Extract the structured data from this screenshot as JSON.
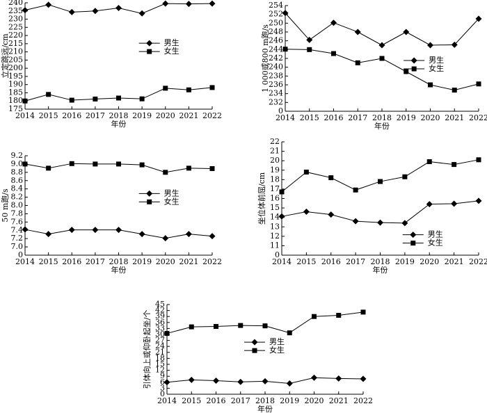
{
  "chart_data": [
    {
      "type": "line",
      "ylabel": "立定跳远/cm",
      "xlabel": "年份",
      "categories": [
        "2014",
        "2015",
        "2016",
        "2017",
        "2018",
        "2019",
        "2020",
        "2021",
        "2022"
      ],
      "ylim": [
        175,
        240
      ],
      "yticks": [
        175,
        180,
        185,
        190,
        195,
        200,
        205,
        210,
        215,
        220,
        225,
        230,
        235,
        240
      ],
      "legend_loc": "center right",
      "series": [
        {
          "name": "男生",
          "color": "#000000",
          "marker": "diamond",
          "values": [
            235.5,
            238.8,
            234.3,
            235,
            236.8,
            233.5,
            239.5,
            239.3,
            239.5
          ]
        },
        {
          "name": "女生",
          "color": "#000000",
          "marker": "square",
          "values": [
            180,
            184,
            180.5,
            181.2,
            181.8,
            181.3,
            187.8,
            186.8,
            188.2
          ]
        }
      ]
    },
    {
      "type": "line",
      "ylabel": "1 000或800 m跑/s",
      "xlabel": "年份",
      "categories": [
        "2014",
        "2015",
        "2016",
        "2017",
        "2018",
        "2019",
        "2020",
        "2021",
        "2022"
      ],
      "ylim": [
        230,
        254
      ],
      "yticks": [
        232,
        234,
        236,
        238,
        240,
        242,
        244,
        246,
        248,
        250,
        252,
        254
      ],
      "axis_break_label": "0",
      "legend_loc": "upper right",
      "series": [
        {
          "name": "男生",
          "color": "#000000",
          "marker": "diamond",
          "values": [
            252.3,
            246.2,
            250.1,
            248,
            245,
            248,
            245,
            245.1,
            251
          ]
        },
        {
          "name": "女生",
          "color": "#000000",
          "marker": "square",
          "values": [
            244.1,
            244,
            243.1,
            241,
            242,
            239,
            236,
            234.8,
            236.2
          ]
        }
      ]
    },
    {
      "type": "line",
      "ylabel": "50 m跑/s",
      "xlabel": "年份",
      "categories": [
        "2014",
        "2015",
        "2016",
        "2017",
        "2018",
        "2019",
        "2020",
        "2021",
        "2022"
      ],
      "ylim": [
        6.8,
        9.2
      ],
      "yticks": [
        {
          "value": 7,
          "label": "7.0"
        },
        7.2,
        7.4,
        7.6,
        7.8,
        {
          "value": 8,
          "label": "8.0"
        },
        8.2,
        8.4,
        8.6,
        8.8,
        {
          "value": 9,
          "label": "9.0"
        },
        9.2
      ],
      "axis_break_label": "0",
      "legend_loc": "center right",
      "series": [
        {
          "name": "男生",
          "color": "#000000",
          "marker": "diamond",
          "values": [
            7.42,
            7.31,
            7.41,
            7.41,
            7.41,
            7.31,
            7.21,
            7.31,
            7.26
          ]
        },
        {
          "name": "女生",
          "color": "#000000",
          "marker": "square",
          "values": [
            9.0,
            8.9,
            9.01,
            9.0,
            9.0,
            8.98,
            8.8,
            8.9,
            8.89
          ]
        }
      ]
    },
    {
      "type": "line",
      "ylabel": "坐位体前屈/cm",
      "xlabel": "年份",
      "categories": [
        "2014",
        "2015",
        "2016",
        "2017",
        "2018",
        "2019",
        "2020",
        "2021",
        "2022"
      ],
      "ylim": [
        10,
        22
      ],
      "yticks": [
        11,
        12,
        13,
        14,
        15,
        16,
        17,
        18,
        19,
        20,
        21,
        22
      ],
      "axis_break_label": "0",
      "legend_loc": "lower right",
      "series": [
        {
          "name": "男生",
          "color": "#000000",
          "marker": "diamond",
          "values": [
            14.1,
            14.6,
            14.3,
            13.6,
            13.45,
            13.4,
            15.4,
            15.45,
            15.75
          ]
        },
        {
          "name": "女生",
          "color": "#000000",
          "marker": "square",
          "values": [
            16.7,
            18.8,
            18.2,
            16.9,
            17.8,
            18.3,
            19.9,
            19.6,
            20.1
          ]
        }
      ]
    },
    {
      "type": "line",
      "ylabel": "引体向上或仰卧起坐/个",
      "xlabel": "年份",
      "categories": [
        "2014",
        "2015",
        "2016",
        "2017",
        "2018",
        "2019",
        "2020",
        "2021",
        "2022"
      ],
      "ylim": [
        0,
        45
      ],
      "yticks": [
        0,
        3,
        6,
        9,
        12,
        15,
        18,
        21,
        24,
        27,
        30,
        33,
        36,
        39,
        42,
        45
      ],
      "legend_loc": "center",
      "series": [
        {
          "name": "男生",
          "color": "#000000",
          "marker": "diamond",
          "values": [
            6,
            7.2,
            6.8,
            6.2,
            6.5,
            5.4,
            8.3,
            7.9,
            7.7
          ]
        },
        {
          "name": "女生",
          "color": "#000000",
          "marker": "square",
          "values": [
            30.5,
            33.8,
            34,
            34.5,
            34.3,
            30.8,
            39,
            39.6,
            41.2
          ]
        }
      ]
    }
  ]
}
